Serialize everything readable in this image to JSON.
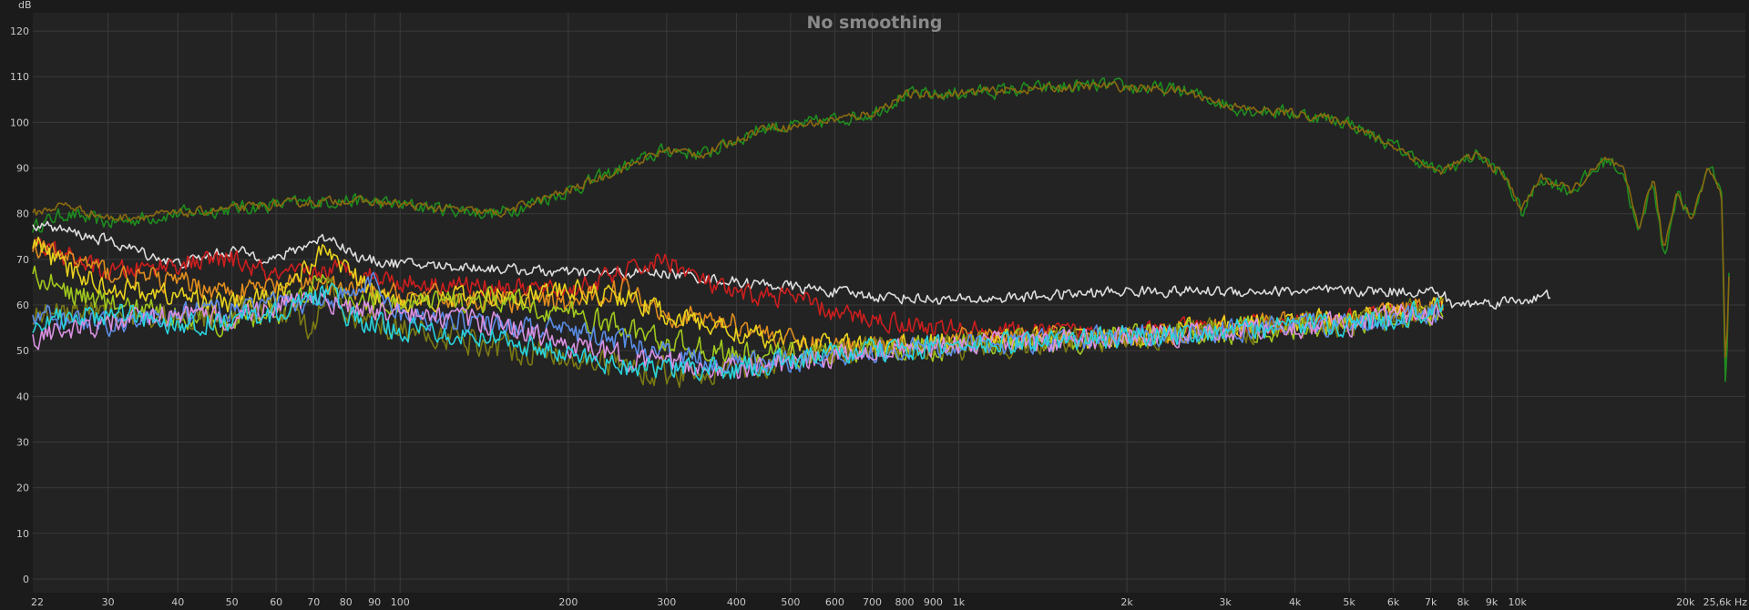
{
  "chart_data": {
    "type": "line",
    "title": "No smoothing",
    "ylabel": "dB",
    "x_unit": "Hz",
    "x_scale": "log",
    "xlim": [
      22,
      25600
    ],
    "ylim": [
      -3,
      124
    ],
    "grid": true,
    "y_ticks": [
      0,
      10,
      20,
      30,
      40,
      50,
      60,
      70,
      80,
      90,
      100,
      110,
      120
    ],
    "x_ticks": [
      {
        "v": 22,
        "label": "22"
      },
      {
        "v": 30,
        "label": "30"
      },
      {
        "v": 40,
        "label": "40"
      },
      {
        "v": 50,
        "label": "50"
      },
      {
        "v": 60,
        "label": "60"
      },
      {
        "v": 70,
        "label": "70"
      },
      {
        "v": 80,
        "label": "80"
      },
      {
        "v": 90,
        "label": "90"
      },
      {
        "v": 100,
        "label": "100"
      },
      {
        "v": 200,
        "label": "200"
      },
      {
        "v": 300,
        "label": "300"
      },
      {
        "v": 400,
        "label": "400"
      },
      {
        "v": 500,
        "label": "500"
      },
      {
        "v": 600,
        "label": "600"
      },
      {
        "v": 700,
        "label": "700"
      },
      {
        "v": 800,
        "label": "800"
      },
      {
        "v": 900,
        "label": "900"
      },
      {
        "v": 1000,
        "label": "1k"
      },
      {
        "v": 2000,
        "label": "2k"
      },
      {
        "v": 3000,
        "label": "3k"
      },
      {
        "v": 4000,
        "label": "4k"
      },
      {
        "v": 5000,
        "label": "5k"
      },
      {
        "v": 6000,
        "label": "6k"
      },
      {
        "v": 7000,
        "label": "7k"
      },
      {
        "v": 8000,
        "label": "8k"
      },
      {
        "v": 9000,
        "label": "9k"
      },
      {
        "v": 10000,
        "label": "10k"
      },
      {
        "v": 20000,
        "label": "20k"
      },
      {
        "v": 25600,
        "label": "25,6k Hz"
      }
    ],
    "series": [
      {
        "color": "#1e8c1e",
        "jitter": 1.3,
        "x": [
          22,
          25,
          30,
          40,
          60,
          80,
          100,
          150,
          200,
          300,
          350,
          450,
          500,
          700,
          800,
          900,
          1200,
          1800,
          2500,
          3200,
          4000,
          5000,
          5500,
          6200,
          7200,
          8500,
          9500,
          10200,
          11000,
          12500,
          14500,
          15500,
          16500,
          17500,
          18300,
          19300,
          20500,
          22000,
          23200,
          23600,
          24000
        ],
        "y": [
          77,
          80,
          78,
          80,
          82,
          83,
          82,
          80,
          85,
          94,
          93,
          99,
          99,
          102,
          106,
          106,
          107,
          108,
          107,
          103,
          102,
          100,
          97,
          94,
          89,
          93,
          88,
          80,
          88,
          85,
          92,
          89,
          75,
          88,
          70,
          85,
          78,
          91,
          86,
          40,
          72
        ]
      },
      {
        "color": "#8a6a10",
        "jitter": 0.8,
        "x": [
          22,
          25,
          30,
          40,
          60,
          80,
          100,
          150,
          200,
          300,
          350,
          450,
          500,
          700,
          800,
          900,
          1200,
          1800,
          2500,
          3200,
          4000,
          5000,
          5500,
          6200,
          7200,
          8500,
          9500,
          10200,
          11000,
          12500,
          14500,
          15500,
          16500,
          17500,
          18300,
          19300,
          20500,
          22000,
          23200,
          23600,
          24000
        ],
        "y": [
          80,
          82,
          79,
          80,
          82,
          83,
          82,
          80,
          85,
          94,
          93,
          99,
          99,
          102,
          106,
          106,
          107,
          108,
          107,
          103,
          102,
          100,
          97,
          94,
          89,
          93,
          88,
          81,
          88,
          85,
          92,
          89,
          77,
          88,
          72,
          85,
          79,
          90,
          85,
          46,
          70
        ]
      },
      {
        "color": "#dcdcdc",
        "jitter": 1.0,
        "x": [
          22,
          30,
          40,
          50,
          60,
          70,
          75,
          85,
          100,
          150,
          200,
          300,
          400,
          500,
          700,
          1000,
          2000,
          3000,
          5000,
          7000,
          7400,
          7600,
          10000,
          11500
        ],
        "y": [
          78,
          74,
          69,
          72,
          70,
          74,
          75,
          70,
          69,
          68,
          67,
          67,
          65,
          64,
          62,
          61,
          63,
          63,
          63,
          63,
          62,
          60,
          61,
          62
        ]
      },
      {
        "color": "#cc1e1e",
        "jitter": 1.8,
        "x": [
          22,
          25,
          30,
          40,
          50,
          60,
          80,
          100,
          150,
          200,
          250,
          300,
          350,
          400,
          500,
          600,
          700,
          900,
          1200,
          2000,
          3000,
          5000,
          7000,
          7400
        ],
        "y": [
          73,
          71,
          67,
          69,
          70,
          66,
          68,
          65,
          64,
          63,
          67,
          70,
          65,
          62,
          62,
          58,
          57,
          55,
          54,
          54,
          55,
          57,
          59,
          60
        ]
      },
      {
        "color": "#e08c1e",
        "jitter": 2.0,
        "x": [
          22,
          25,
          30,
          40,
          50,
          60,
          70,
          80,
          100,
          150,
          200,
          250,
          300,
          400,
          500,
          600,
          800,
          1200,
          2000,
          3000,
          5000,
          7400
        ],
        "y": [
          72,
          71,
          67,
          65,
          63,
          64,
          65,
          63,
          62,
          61,
          60,
          64,
          58,
          56,
          52,
          51,
          52,
          53,
          53,
          55,
          57,
          60
        ]
      },
      {
        "color": "#e8d21e",
        "jitter": 2.0,
        "x": [
          22,
          25,
          30,
          40,
          50,
          60,
          70,
          75,
          80,
          90,
          100,
          150,
          200,
          250,
          300,
          400,
          500,
          700,
          1000,
          2000,
          3000,
          5000,
          7400
        ],
        "y": [
          74,
          68,
          64,
          62,
          60,
          62,
          70,
          72,
          68,
          62,
          61,
          62,
          63,
          62,
          58,
          54,
          51,
          51,
          52,
          53,
          55,
          57,
          60
        ]
      },
      {
        "color": "#a0c81e",
        "jitter": 2.2,
        "x": [
          22,
          30,
          40,
          50,
          60,
          70,
          80,
          100,
          150,
          200,
          250,
          300,
          400,
          500,
          700,
          1000,
          2000,
          5000,
          7400
        ],
        "y": [
          66,
          60,
          58,
          56,
          58,
          65,
          62,
          60,
          61,
          58,
          55,
          52,
          49,
          49,
          50,
          51,
          53,
          56,
          59
        ]
      },
      {
        "color": "#7a7a14",
        "jitter": 2.4,
        "x": [
          22,
          30,
          40,
          50,
          60,
          70,
          75,
          80,
          90,
          100,
          150,
          200,
          300,
          400,
          500,
          700,
          1000,
          2000,
          5000,
          7400
        ],
        "y": [
          58,
          58,
          57,
          58,
          60,
          55,
          64,
          57,
          56,
          55,
          51,
          49,
          45,
          46,
          48,
          50,
          51,
          53,
          56,
          59
        ]
      },
      {
        "color": "#5a8ce6",
        "jitter": 2.0,
        "x": [
          22,
          30,
          40,
          50,
          60,
          70,
          80,
          90,
          100,
          150,
          200,
          250,
          300,
          400,
          500,
          700,
          1000,
          2000,
          5000,
          7400
        ],
        "y": [
          58,
          56,
          58,
          59,
          60,
          61,
          62,
          65,
          58,
          56,
          54,
          52,
          49,
          47,
          48,
          50,
          51,
          53,
          56,
          59
        ]
      },
      {
        "color": "#d890e0",
        "jitter": 2.0,
        "x": [
          22,
          30,
          40,
          50,
          60,
          70,
          80,
          100,
          150,
          200,
          300,
          400,
          500,
          700,
          1000,
          2000,
          5000,
          7400
        ],
        "y": [
          53,
          56,
          58,
          57,
          60,
          61,
          60,
          58,
          56,
          51,
          47,
          46,
          47,
          50,
          51,
          53,
          56,
          59
        ]
      },
      {
        "color": "#28d2dc",
        "jitter": 2.0,
        "x": [
          22,
          25,
          30,
          40,
          50,
          60,
          70,
          75,
          80,
          100,
          150,
          200,
          250,
          300,
          400,
          500,
          700,
          1000,
          2000,
          5000,
          7400
        ],
        "y": [
          56,
          57,
          58,
          56,
          57,
          58,
          61,
          64,
          57,
          55,
          53,
          49,
          47,
          46,
          46,
          48,
          50,
          51,
          53,
          56,
          59
        ]
      }
    ]
  }
}
